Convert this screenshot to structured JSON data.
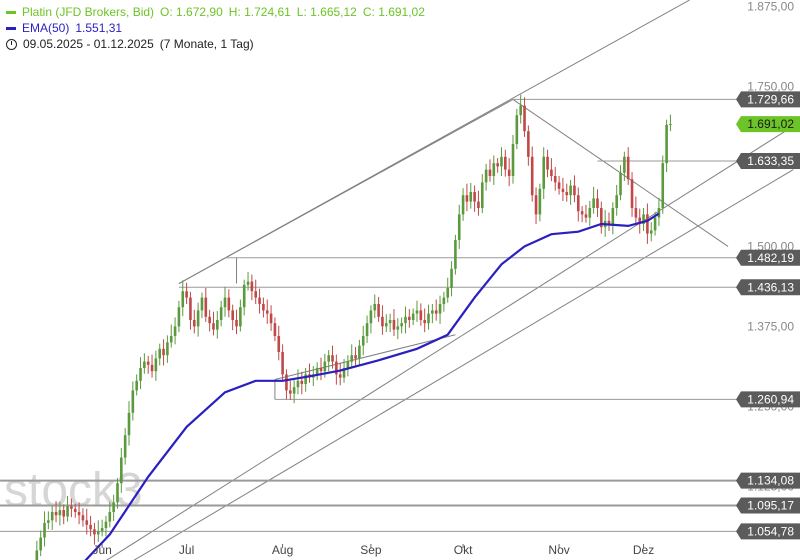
{
  "legend": {
    "instrument": "Platin (JFD Brokers, Bid)",
    "open": "O: 1.672,90",
    "high": "H: 1.724,61",
    "low": "L: 1.665,12",
    "close": "C: 1.691,02",
    "ema_label": "EMA(50)",
    "ema_value": "1.551,31",
    "range": "09.05.2025 - 01.12.2025",
    "range_detail": "(7 Monate, 1 Tag)"
  },
  "watermark": "stock3",
  "colors": {
    "up": "#5a9a3c",
    "down": "#c04848",
    "ema": "#2a1fbf",
    "line": "#808080",
    "hline": "#9a9a9a",
    "tag_bg": "#5b5b5b",
    "tag_current_bg": "#6cc426",
    "tag_text": "#ffffff",
    "legend_instrument": "#6cc426",
    "legend_ema": "#2a1fbf"
  },
  "chart_data": {
    "type": "candlestick",
    "title": "Platin (JFD Brokers, Bid)",
    "ylim": [
      1010,
      1885
    ],
    "y_ticks": [
      {
        "value": 1875,
        "label": "1.875,00"
      },
      {
        "value": 1750,
        "label": "1.750,00"
      },
      {
        "value": 1500,
        "label": "1.500,00"
      },
      {
        "value": 1375,
        "label": "1.375,00"
      },
      {
        "value": 1250,
        "label": "1.250,00"
      },
      {
        "value": 1125,
        "label": "1.125,00"
      }
    ],
    "x_labels": [
      {
        "index": 18,
        "label": "Jun"
      },
      {
        "index": 40,
        "label": "Jul"
      },
      {
        "index": 65,
        "label": "Aug"
      },
      {
        "index": 88,
        "label": "Sep"
      },
      {
        "index": 112,
        "label": "Okt"
      },
      {
        "index": 137,
        "label": "Nov"
      },
      {
        "index": 159,
        "label": "Dez"
      }
    ],
    "levels": [
      {
        "value": 1729.66,
        "label": "1.729,66",
        "current": false,
        "bold": false
      },
      {
        "value": 1691.02,
        "label": "1.691,02",
        "current": true,
        "bold": false
      },
      {
        "value": 1633.35,
        "label": "1.633,35",
        "current": false,
        "bold": false
      },
      {
        "value": 1482.19,
        "label": "1.482,19",
        "current": false,
        "bold": false
      },
      {
        "value": 1436.13,
        "label": "1.436,13",
        "current": false,
        "bold": false
      },
      {
        "value": 1260.94,
        "label": "1.260,94",
        "current": false,
        "bold": false
      },
      {
        "value": 1134.08,
        "label": "1.134,08",
        "current": false,
        "bold": true
      },
      {
        "value": 1095.17,
        "label": "1.095,17",
        "current": false,
        "bold": true
      },
      {
        "value": 1054.78,
        "label": "1.054,78",
        "current": false,
        "bold": false
      }
    ],
    "closes": [
      1008,
      1025,
      1045,
      1068,
      1072,
      1085,
      1080,
      1088,
      1078,
      1094,
      1090,
      1085,
      1080,
      1072,
      1065,
      1058,
      1050,
      1055,
      1060,
      1070,
      1085,
      1100,
      1130,
      1170,
      1205,
      1240,
      1275,
      1290,
      1310,
      1320,
      1315,
      1305,
      1325,
      1340,
      1330,
      1350,
      1360,
      1375,
      1405,
      1430,
      1420,
      1385,
      1375,
      1400,
      1420,
      1390,
      1380,
      1370,
      1385,
      1405,
      1420,
      1400,
      1385,
      1375,
      1405,
      1440,
      1445,
      1430,
      1420,
      1410,
      1400,
      1395,
      1380,
      1360,
      1335,
      1300,
      1275,
      1270,
      1280,
      1290,
      1285,
      1300,
      1295,
      1300,
      1310,
      1305,
      1320,
      1330,
      1320,
      1300,
      1295,
      1310,
      1320,
      1330,
      1325,
      1345,
      1360,
      1380,
      1400,
      1410,
      1390,
      1375,
      1380,
      1385,
      1370,
      1375,
      1380,
      1390,
      1385,
      1395,
      1400,
      1385,
      1380,
      1395,
      1400,
      1395,
      1410,
      1420,
      1435,
      1465,
      1510,
      1550,
      1580,
      1570,
      1585,
      1570,
      1560,
      1600,
      1620,
      1610,
      1630,
      1625,
      1640,
      1620,
      1610,
      1660,
      1705,
      1720,
      1680,
      1640,
      1580,
      1550,
      1590,
      1640,
      1620,
      1610,
      1600,
      1590,
      1585,
      1580,
      1595,
      1580,
      1555,
      1550,
      1545,
      1560,
      1575,
      1560,
      1530,
      1540,
      1535,
      1560,
      1580,
      1615,
      1640,
      1605,
      1560,
      1545,
      1535,
      1550,
      1520,
      1525,
      1545,
      1560,
      1630,
      1690,
      1691.02
    ],
    "ema_points": [
      {
        "index": 13,
        "value": 1005
      },
      {
        "index": 20,
        "value": 1050
      },
      {
        "index": 30,
        "value": 1140
      },
      {
        "index": 40,
        "value": 1218
      },
      {
        "index": 50,
        "value": 1272
      },
      {
        "index": 58,
        "value": 1290
      },
      {
        "index": 65,
        "value": 1290
      },
      {
        "index": 72,
        "value": 1297
      },
      {
        "index": 80,
        "value": 1306
      },
      {
        "index": 90,
        "value": 1322
      },
      {
        "index": 100,
        "value": 1340
      },
      {
        "index": 108,
        "value": 1362
      },
      {
        "index": 115,
        "value": 1420
      },
      {
        "index": 122,
        "value": 1472
      },
      {
        "index": 128,
        "value": 1500
      },
      {
        "index": 135,
        "value": 1519
      },
      {
        "index": 142,
        "value": 1523
      },
      {
        "index": 148,
        "value": 1535
      },
      {
        "index": 155,
        "value": 1532
      },
      {
        "index": 160,
        "value": 1540
      },
      {
        "index": 163,
        "value": 1551.31
      }
    ],
    "trendlines": [
      {
        "x1": 38,
        "y1": 1442,
        "x2": 125,
        "y2": 1729.66
      },
      {
        "x1": 38,
        "y1": 1442,
        "x2": 171,
        "y2": 1885
      },
      {
        "x1": 125,
        "y1": 1729.66,
        "x2": 181,
        "y2": 1500
      },
      {
        "x1": 63,
        "y1": 1292,
        "x2": 110,
        "y2": 1362
      },
      {
        "x1": 63,
        "y1": 1292,
        "x2": 63,
        "y2": 1260.94
      },
      {
        "x1": 53,
        "y1": 1482.19,
        "x2": 53,
        "y2": 1442
      },
      {
        "x1": 14,
        "y1": 990,
        "x2": 198,
        "y2": 1688
      },
      {
        "x1": 25,
        "y1": 1005,
        "x2": 198,
        "y2": 1620
      }
    ]
  }
}
